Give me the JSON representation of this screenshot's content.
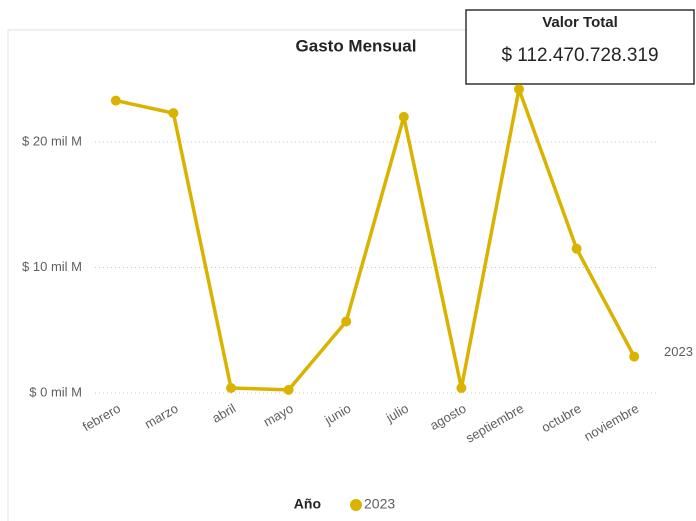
{
  "chart_data": {
    "type": "line",
    "title": "Gasto Mensual",
    "categories": [
      "febrero",
      "marzo",
      "abril",
      "mayo",
      "junio",
      "julio",
      "agosto",
      "septiembre",
      "octubre",
      "noviembre"
    ],
    "series": [
      {
        "name": "2023",
        "color": "#d9b300",
        "values": [
          23.3,
          22.3,
          0.4,
          0.25,
          5.7,
          22.0,
          0.4,
          24.2,
          11.5,
          2.9
        ]
      }
    ],
    "ylim": [
      0,
      26.5
    ],
    "yticks": [
      {
        "value": 0,
        "label": "$ 0 mil M"
      },
      {
        "value": 10,
        "label": "$ 10 mil M"
      },
      {
        "value": 20,
        "label": "$ 20 mil M"
      }
    ],
    "grid": true,
    "legend_title": "Año",
    "legend": "bottom"
  },
  "card": {
    "title": "Valor Total",
    "value": "$ 112.470.728.319"
  }
}
